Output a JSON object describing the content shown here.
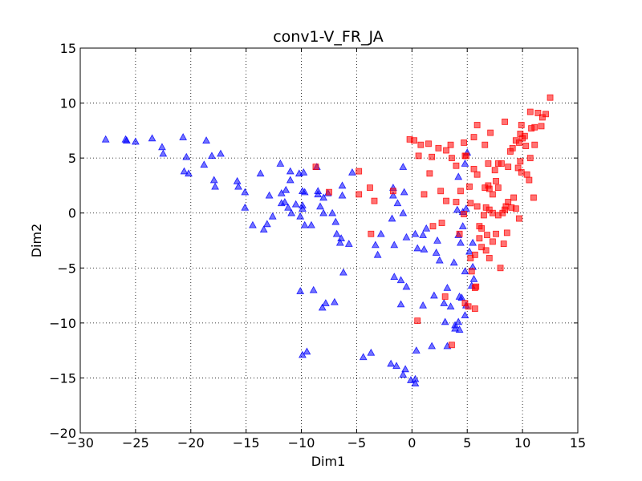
{
  "chart_data": {
    "type": "scatter",
    "title": "conv1-V_FR_JA",
    "xlabel": "Dim1",
    "ylabel": "Dim2",
    "xlim": [
      -30,
      15
    ],
    "ylim": [
      -20,
      15
    ],
    "xticks": [
      -30,
      -25,
      -20,
      -15,
      -10,
      -5,
      0,
      5,
      10,
      15
    ],
    "yticks": [
      -20,
      -15,
      -10,
      -5,
      0,
      5,
      10,
      15
    ],
    "grid": true,
    "grid_style": "dotted",
    "legend": "none",
    "series": [
      {
        "marker": "triangle",
        "color": "#0000ff",
        "points": [
          [
            -27.7,
            6.7
          ],
          [
            -25.9,
            6.7
          ],
          [
            -25.8,
            6.6
          ],
          [
            -25.0,
            6.5
          ],
          [
            -23.5,
            6.8
          ],
          [
            -22.6,
            6.0
          ],
          [
            -22.5,
            5.4
          ],
          [
            -20.7,
            6.9
          ],
          [
            -20.4,
            5.1
          ],
          [
            -20.6,
            3.8
          ],
          [
            -20.2,
            3.6
          ],
          [
            -18.6,
            6.6
          ],
          [
            -18.1,
            5.2
          ],
          [
            -17.3,
            5.4
          ],
          [
            -18.8,
            4.4
          ],
          [
            -17.9,
            3.0
          ],
          [
            -17.8,
            2.4
          ],
          [
            -15.8,
            2.9
          ],
          [
            -15.7,
            2.4
          ],
          [
            -15.1,
            1.9
          ],
          [
            -15.1,
            0.5
          ],
          [
            -13.7,
            3.6
          ],
          [
            -14.4,
            -1.1
          ],
          [
            -13.4,
            -1.5
          ],
          [
            -13.1,
            -1.0
          ],
          [
            -12.6,
            -0.3
          ],
          [
            -12.9,
            1.6
          ],
          [
            -11.9,
            4.5
          ],
          [
            -11.8,
            1.8
          ],
          [
            -11.4,
            2.1
          ],
          [
            -11.5,
            1.0
          ],
          [
            -11.8,
            0.9
          ],
          [
            -11.2,
            0.5
          ],
          [
            -11.0,
            3.8
          ],
          [
            -11.0,
            3.0
          ],
          [
            -10.9,
            0.0
          ],
          [
            -10.2,
            3.6
          ],
          [
            -9.8,
            3.7
          ],
          [
            -9.9,
            2.0
          ],
          [
            -9.7,
            1.9
          ],
          [
            -10.5,
            0.8
          ],
          [
            -9.9,
            0.7
          ],
          [
            -9.9,
            0.4
          ],
          [
            -10.1,
            -0.3
          ],
          [
            -9.7,
            -1.1
          ],
          [
            -9.1,
            -1.1
          ],
          [
            -8.6,
            4.2
          ],
          [
            -8.5,
            2.0
          ],
          [
            -8.5,
            1.7
          ],
          [
            -8.0,
            1.4
          ],
          [
            -7.6,
            1.8
          ],
          [
            -8.3,
            0.6
          ],
          [
            -8.0,
            0.0
          ],
          [
            -7.2,
            0.0
          ],
          [
            -6.9,
            -0.8
          ],
          [
            -6.8,
            -1.9
          ],
          [
            -6.4,
            -2.3
          ],
          [
            -6.5,
            -2.7
          ],
          [
            -6.3,
            2.5
          ],
          [
            -6.3,
            1.6
          ],
          [
            -5.7,
            -2.8
          ],
          [
            -5.4,
            3.7
          ],
          [
            -6.2,
            -5.4
          ],
          [
            -10.1,
            -7.1
          ],
          [
            -8.9,
            -7.0
          ],
          [
            -8.1,
            -8.6
          ],
          [
            -7.8,
            -8.2
          ],
          [
            -7.0,
            -8.1
          ],
          [
            -9.9,
            -12.9
          ],
          [
            -9.5,
            -12.6
          ],
          [
            -4.4,
            -13.1
          ],
          [
            -3.7,
            -12.7
          ],
          [
            -1.9,
            -13.7
          ],
          [
            -1.4,
            -13.9
          ],
          [
            -0.8,
            -14.7
          ],
          [
            -0.6,
            -14.2
          ],
          [
            -0.1,
            -15.2
          ],
          [
            0.3,
            -15.1
          ],
          [
            0.3,
            -15.5
          ],
          [
            0.4,
            -12.5
          ],
          [
            1.8,
            -12.1
          ],
          [
            3.2,
            -12.1
          ],
          [
            -1.7,
            2.3
          ],
          [
            -1.7,
            1.6
          ],
          [
            -1.3,
            0.9
          ],
          [
            -1.8,
            -0.5
          ],
          [
            -2.8,
            -1.9
          ],
          [
            -1.6,
            -2.9
          ],
          [
            -3.3,
            -2.9
          ],
          [
            -0.7,
            1.9
          ],
          [
            -0.8,
            0.0
          ],
          [
            -0.5,
            -2.2
          ],
          [
            -0.8,
            4.2
          ],
          [
            -3.1,
            -3.8
          ],
          [
            -1.6,
            -5.8
          ],
          [
            -1.0,
            -6.1
          ],
          [
            -0.5,
            -6.7
          ],
          [
            0.3,
            -1.9
          ],
          [
            0.5,
            -3.2
          ],
          [
            1.0,
            -2.0
          ],
          [
            1.1,
            -3.3
          ],
          [
            1.3,
            -1.4
          ],
          [
            2.3,
            -2.5
          ],
          [
            2.2,
            -3.6
          ],
          [
            2.5,
            -4.3
          ],
          [
            3.8,
            -4.5
          ],
          [
            4.4,
            -2.7
          ],
          [
            3.2,
            -6.8
          ],
          [
            4.3,
            -7.6
          ],
          [
            4.9,
            -8.4
          ],
          [
            4.2,
            -9.9
          ],
          [
            3.0,
            -9.9
          ],
          [
            3.5,
            -8.5
          ],
          [
            4.5,
            -7.7
          ],
          [
            -1.0,
            -8.3
          ],
          [
            1.0,
            -8.4
          ],
          [
            2.0,
            -7.5
          ],
          [
            2.9,
            -8.2
          ],
          [
            4.2,
            3.3
          ],
          [
            4.1,
            0.3
          ],
          [
            4.6,
            0.1
          ],
          [
            4.9,
            0.4
          ],
          [
            4.6,
            -1.2
          ],
          [
            4.2,
            -2.0
          ],
          [
            4.8,
            4.5
          ],
          [
            5.0,
            5.5
          ],
          [
            5.5,
            -2.7
          ],
          [
            5.2,
            -3.5
          ],
          [
            5.5,
            -4.9
          ],
          [
            4.8,
            -5.3
          ],
          [
            5.6,
            -6.0
          ],
          [
            5.4,
            -6.6
          ],
          [
            3.9,
            -10.2
          ],
          [
            3.9,
            -10.5
          ],
          [
            4.3,
            -10.6
          ],
          [
            4.8,
            -9.3
          ]
        ]
      },
      {
        "marker": "square",
        "color": "#ff0000",
        "points": [
          [
            -8.7,
            4.2
          ],
          [
            -7.5,
            1.9
          ],
          [
            -4.8,
            3.8
          ],
          [
            -4.8,
            1.7
          ],
          [
            -3.8,
            2.3
          ],
          [
            -3.4,
            1.1
          ],
          [
            -1.7,
            2.0
          ],
          [
            -3.7,
            -1.9
          ],
          [
            -0.2,
            6.7
          ],
          [
            0.2,
            6.6
          ],
          [
            0.8,
            6.2
          ],
          [
            0.6,
            5.2
          ],
          [
            1.5,
            6.3
          ],
          [
            1.8,
            5.1
          ],
          [
            2.4,
            5.9
          ],
          [
            3.1,
            5.7
          ],
          [
            3.5,
            6.2
          ],
          [
            4.7,
            6.4
          ],
          [
            4.9,
            5.2
          ],
          [
            3.6,
            5.0
          ],
          [
            4.0,
            4.3
          ],
          [
            4.8,
            5.2
          ],
          [
            5.6,
            6.9
          ],
          [
            5.9,
            8.0
          ],
          [
            6.6,
            6.2
          ],
          [
            6.9,
            4.5
          ],
          [
            5.6,
            4.0
          ],
          [
            5.9,
            3.5
          ],
          [
            7.1,
            7.3
          ],
          [
            7.8,
            4.5
          ],
          [
            7.5,
            3.9
          ],
          [
            8.1,
            4.5
          ],
          [
            8.4,
            8.3
          ],
          [
            8.7,
            4.2
          ],
          [
            8.9,
            5.6
          ],
          [
            9.1,
            5.9
          ],
          [
            9.4,
            6.6
          ],
          [
            9.7,
            6.4
          ],
          [
            9.8,
            7.2
          ],
          [
            9.9,
            8.0
          ],
          [
            10.2,
            7.0
          ],
          [
            10.0,
            6.8
          ],
          [
            10.3,
            6.1
          ],
          [
            10.7,
            9.2
          ],
          [
            10.8,
            7.7
          ],
          [
            11.1,
            7.8
          ],
          [
            11.4,
            9.1
          ],
          [
            11.8,
            8.7
          ],
          [
            12.1,
            9.0
          ],
          [
            11.7,
            7.9
          ],
          [
            12.5,
            10.5
          ],
          [
            11.1,
            6.2
          ],
          [
            10.7,
            5.0
          ],
          [
            9.8,
            4.7
          ],
          [
            9.6,
            4.1
          ],
          [
            9.9,
            3.7
          ],
          [
            10.4,
            3.5
          ],
          [
            10.6,
            3.0
          ],
          [
            11.0,
            1.4
          ],
          [
            9.7,
            -0.5
          ],
          [
            9.4,
            0.4
          ],
          [
            9.0,
            0.5
          ],
          [
            8.5,
            0.6
          ],
          [
            8.7,
            1.0
          ],
          [
            9.2,
            1.4
          ],
          [
            8.4,
            0.3
          ],
          [
            8.2,
            0.0
          ],
          [
            7.8,
            -0.2
          ],
          [
            7.3,
            0.0
          ],
          [
            7.0,
            0.3
          ],
          [
            6.7,
            0.5
          ],
          [
            6.5,
            -0.2
          ],
          [
            7.3,
            1.7
          ],
          [
            7.8,
            2.3
          ],
          [
            7.0,
            2.2
          ],
          [
            6.6,
            2.3
          ],
          [
            6.9,
            2.5
          ],
          [
            7.6,
            2.9
          ],
          [
            5.3,
            0.9
          ],
          [
            5.9,
            0.6
          ],
          [
            6.1,
            -1.2
          ],
          [
            6.3,
            -1.4
          ],
          [
            6.8,
            -2.0
          ],
          [
            7.6,
            -1.9
          ],
          [
            8.6,
            -1.8
          ],
          [
            8.3,
            -2.8
          ],
          [
            7.3,
            -2.6
          ],
          [
            6.7,
            -3.4
          ],
          [
            7.0,
            -4.1
          ],
          [
            8.0,
            -5.0
          ],
          [
            5.7,
            -3.8
          ],
          [
            5.3,
            -4.1
          ],
          [
            6.3,
            -3.1
          ],
          [
            6.1,
            -2.3
          ],
          [
            5.4,
            -5.3
          ],
          [
            5.8,
            -6.7
          ],
          [
            5.7,
            -6.8
          ],
          [
            5.7,
            -8.7
          ],
          [
            5.1,
            -8.5
          ],
          [
            4.8,
            -8.2
          ],
          [
            3.0,
            -7.6
          ],
          [
            3.6,
            -12.0
          ],
          [
            0.5,
            -9.8
          ],
          [
            1.1,
            1.7
          ],
          [
            1.9,
            -1.2
          ],
          [
            2.7,
            -0.9
          ],
          [
            3.1,
            1.1
          ],
          [
            4.0,
            1.0
          ],
          [
            4.4,
            2.0
          ],
          [
            2.6,
            2.0
          ],
          [
            1.6,
            3.6
          ],
          [
            5.2,
            2.4
          ],
          [
            4.7,
            -0.1
          ],
          [
            4.3,
            -1.9
          ]
        ]
      }
    ]
  }
}
